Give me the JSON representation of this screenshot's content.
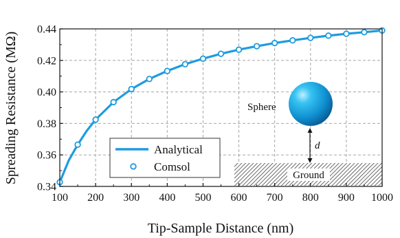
{
  "chart_data": {
    "type": "line",
    "xlabel": "Tip-Sample Distance (nm)",
    "ylabel": "Spreading Resistance (MΩ)",
    "xlim": [
      100,
      1000
    ],
    "ylim": [
      0.34,
      0.44
    ],
    "xticks": [
      100,
      200,
      300,
      400,
      500,
      600,
      700,
      800,
      900,
      1000
    ],
    "yticks": [
      0.34,
      0.36,
      0.38,
      0.4,
      0.42,
      0.44
    ],
    "xtick_labels": [
      "100",
      "200",
      "300",
      "400",
      "500",
      "600",
      "700",
      "800",
      "900",
      "1000"
    ],
    "ytick_labels": [
      "0.34",
      "0.36",
      "0.38",
      "0.40",
      "0.42",
      "0.44"
    ],
    "grid": true,
    "legend_position": "bottom-left",
    "series": [
      {
        "name": "Analytical",
        "style": "line",
        "color": "#1E9BE0",
        "x": [
          100,
          125,
          150,
          175,
          200,
          250,
          300,
          350,
          400,
          450,
          500,
          550,
          600,
          650,
          700,
          750,
          800,
          850,
          900,
          950,
          1000
        ],
        "y": [
          0.3427,
          0.3565,
          0.3665,
          0.3752,
          0.3824,
          0.3935,
          0.4018,
          0.4082,
          0.4133,
          0.4176,
          0.4211,
          0.4242,
          0.4268,
          0.429,
          0.431,
          0.4327,
          0.4343,
          0.4357,
          0.4369,
          0.4379,
          0.439
        ]
      },
      {
        "name": "Comsol",
        "style": "open-circle",
        "color": "#1E9BE0",
        "x": [
          100,
          150,
          200,
          250,
          300,
          350,
          400,
          450,
          500,
          550,
          600,
          650,
          700,
          750,
          800,
          850,
          900,
          950,
          1000
        ],
        "y": [
          0.3427,
          0.3665,
          0.3824,
          0.3935,
          0.4018,
          0.4082,
          0.4133,
          0.4176,
          0.4211,
          0.4242,
          0.4268,
          0.429,
          0.431,
          0.4327,
          0.4343,
          0.4357,
          0.4369,
          0.4379,
          0.439
        ]
      }
    ],
    "inset": {
      "sphere_label": "Sphere",
      "gap_label": "d",
      "ground_label": "Ground",
      "sphere_color": "#1E9BE0"
    }
  }
}
